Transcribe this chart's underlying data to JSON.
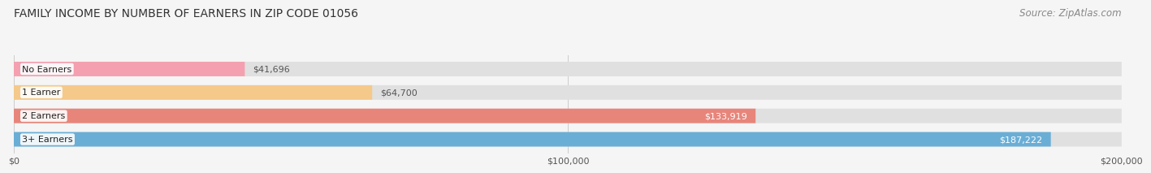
{
  "title": "FAMILY INCOME BY NUMBER OF EARNERS IN ZIP CODE 01056",
  "source": "Source: ZipAtlas.com",
  "categories": [
    "No Earners",
    "1 Earner",
    "2 Earners",
    "3+ Earners"
  ],
  "values": [
    41696,
    64700,
    133919,
    187222
  ],
  "labels": [
    "$41,696",
    "$64,700",
    "$133,919",
    "$187,222"
  ],
  "bar_colors": [
    "#f4a0b0",
    "#f5c98a",
    "#e8857a",
    "#6aaed6"
  ],
  "label_colors": [
    "#555555",
    "#555555",
    "#ffffff",
    "#ffffff"
  ],
  "xlim": [
    0,
    200000
  ],
  "xticks": [
    0,
    100000,
    200000
  ],
  "xtick_labels": [
    "$0",
    "$100,000",
    "$200,000"
  ],
  "title_fontsize": 10,
  "source_fontsize": 8.5,
  "bar_height": 0.62,
  "background_color": "#f5f5f5",
  "bg_bar_color": "#e0e0e0"
}
